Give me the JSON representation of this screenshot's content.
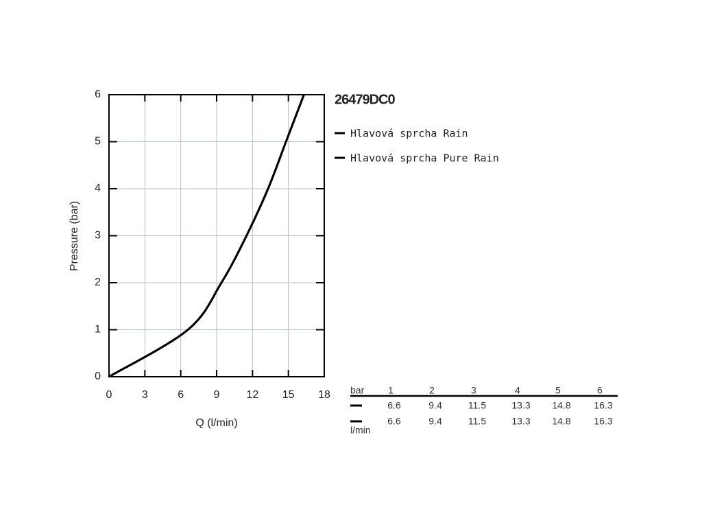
{
  "chart_data": {
    "type": "line",
    "title": "26479DC0",
    "x_label": "Q (l/min)",
    "y_label": "Pressure (bar)",
    "xlim": [
      0,
      18
    ],
    "xticks": [
      0,
      3,
      6,
      9,
      12,
      15,
      18
    ],
    "ylim": [
      0,
      6
    ],
    "yticks": [
      0,
      1,
      2,
      3,
      4,
      5,
      6
    ],
    "grid": true,
    "series": [
      {
        "name": "Hlavová sprcha Rain",
        "color": "#000000",
        "x": [
          0,
          6.6,
          9.4,
          11.5,
          13.3,
          14.8,
          16.3
        ],
        "values": [
          0,
          1,
          2,
          3,
          4,
          5,
          6
        ]
      },
      {
        "name": "Hlavová sprcha Pure Rain",
        "color": "#000000",
        "x": [
          0,
          6.6,
          9.4,
          11.5,
          13.3,
          14.8,
          16.3
        ],
        "values": [
          0,
          1,
          2,
          3,
          4,
          5,
          6
        ]
      }
    ],
    "table": {
      "pressure_unit": "bar",
      "flow_unit": "l/min"
    }
  }
}
